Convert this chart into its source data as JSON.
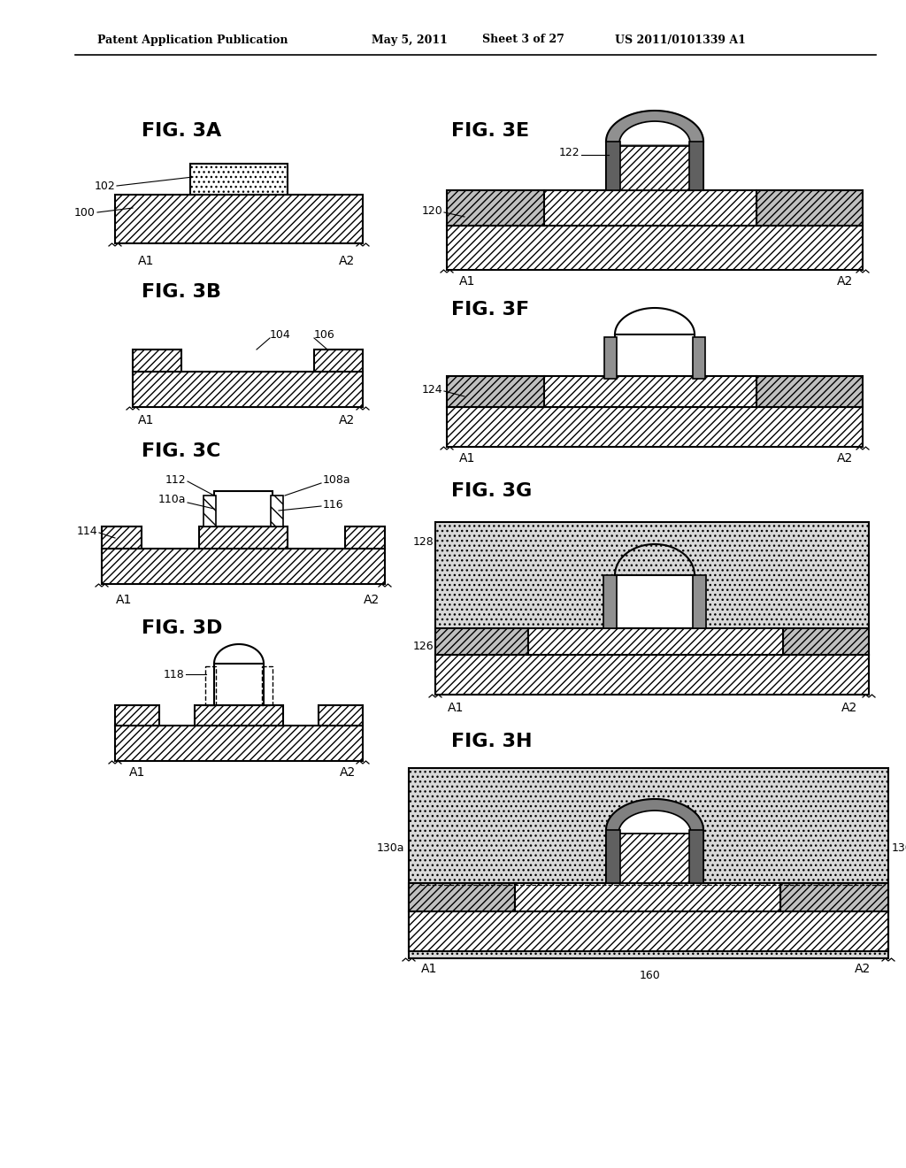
{
  "header_left": "Patent Application Publication",
  "header_mid": "May 5, 2011   Sheet 3 of 27",
  "header_right": "US 2011/0101339 A1",
  "bg": "#ffffff",
  "lc": "#000000"
}
